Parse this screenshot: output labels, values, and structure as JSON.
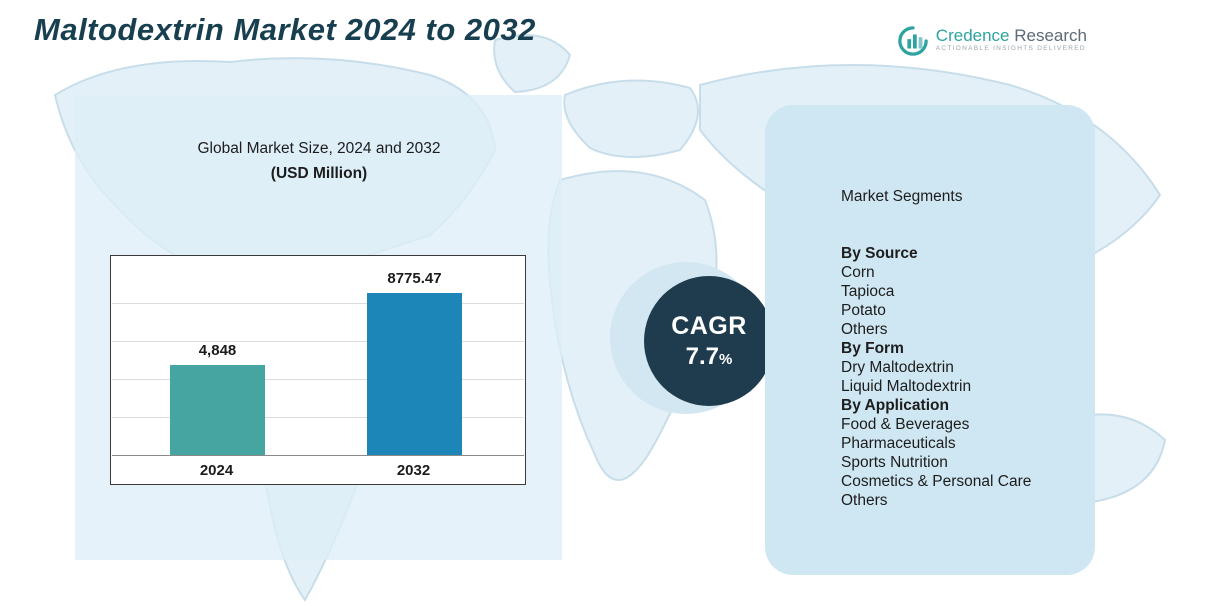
{
  "page": {
    "title": "Maltodextrin Market 2024 to 2032"
  },
  "logo": {
    "brand_primary": "Credence",
    "brand_secondary": " Research",
    "tagline": "Actionable Insights Delivered"
  },
  "chart_data": {
    "type": "bar",
    "title": "Global Market Size, 2024 and 2032",
    "subtitle": "(USD Million)",
    "categories": [
      "2024",
      "2032"
    ],
    "values": [
      4848,
      8775.47
    ],
    "value_labels": [
      "4,848",
      "8775.47"
    ],
    "xlabel": "",
    "ylabel": "USD Million",
    "ylim": [
      0,
      10000
    ],
    "grid": true,
    "legend": "none",
    "colors": [
      "#46a5a0",
      "#1c86b8"
    ]
  },
  "cagr": {
    "label": "CAGR",
    "value": "7.7",
    "unit": "%"
  },
  "segments": {
    "title": "Market Segments",
    "groups": [
      {
        "heading": "By Source",
        "items": [
          "Corn",
          "Tapioca",
          "Potato",
          "Others"
        ]
      },
      {
        "heading": "By Form",
        "items": [
          "Dry Maltodextrin",
          "Liquid Maltodextrin"
        ]
      },
      {
        "heading": "By Application",
        "items": [
          "Food & Beverages",
          "Pharmaceuticals",
          "Sports Nutrition",
          "Cosmetics & Personal Care",
          "Others"
        ]
      }
    ]
  },
  "colors": {
    "title_text": "#183f50",
    "panel": "#cfe7f2",
    "map_fill": "#e3f0f8",
    "map_stroke": "#c7deea",
    "cagr_circle": "#1e3c4d",
    "accent_teal": "#2ea3a0"
  }
}
